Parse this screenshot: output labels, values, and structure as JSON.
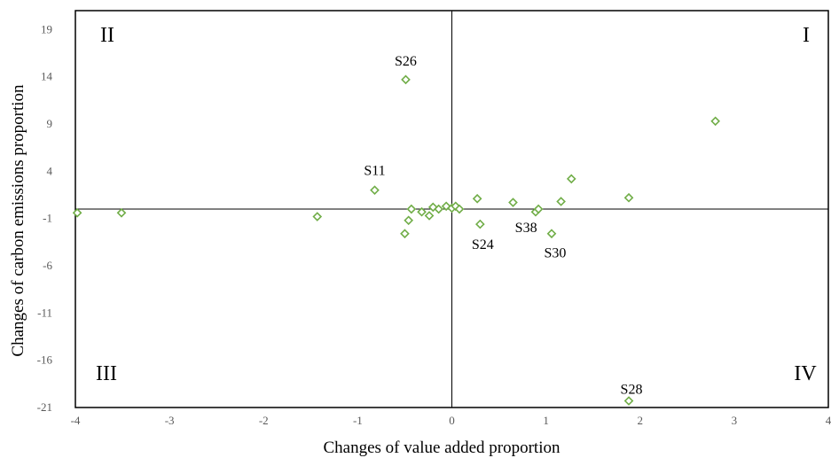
{
  "chart_data": {
    "type": "scatter",
    "title": "",
    "xlabel": "Changes of value added proportion",
    "ylabel": "Changes of carbon emissions proportion",
    "xlim": [
      -4,
      4
    ],
    "ylim": [
      -21,
      21
    ],
    "x_ticks": [
      "-4",
      "-3",
      "-2",
      "-1",
      "0",
      "1",
      "2",
      "3",
      "4"
    ],
    "y_ticks": [
      "19",
      "14",
      "9",
      "4",
      "-1",
      "-6",
      "-11",
      "-16",
      "-21"
    ],
    "quadrant_labels": {
      "I": "I",
      "II": "II",
      "III": "III",
      "IV": "IV"
    },
    "marker": "diamond-open",
    "marker_color": "#70ad47",
    "points": [
      {
        "x": -3.98,
        "y": -0.4
      },
      {
        "x": -3.51,
        "y": -0.4
      },
      {
        "x": -1.43,
        "y": -0.8
      },
      {
        "x": -0.82,
        "y": 2.0,
        "label": "S11"
      },
      {
        "x": -0.49,
        "y": 13.7,
        "label": "S26"
      },
      {
        "x": -0.5,
        "y": -2.6
      },
      {
        "x": -0.46,
        "y": -1.2
      },
      {
        "x": -0.43,
        "y": 0.0
      },
      {
        "x": -0.32,
        "y": -0.3
      },
      {
        "x": -0.24,
        "y": -0.7
      },
      {
        "x": -0.2,
        "y": 0.2
      },
      {
        "x": -0.14,
        "y": 0.0
      },
      {
        "x": -0.06,
        "y": 0.3
      },
      {
        "x": 0.0,
        "y": 0.1
      },
      {
        "x": 0.04,
        "y": 0.3
      },
      {
        "x": 0.08,
        "y": 0.0
      },
      {
        "x": 0.27,
        "y": 1.1
      },
      {
        "x": 0.3,
        "y": -1.6,
        "label": "S24"
      },
      {
        "x": 0.65,
        "y": 0.7
      },
      {
        "x": 0.89,
        "y": -0.3
      },
      {
        "x": 0.92,
        "y": 0.0,
        "label": "S38"
      },
      {
        "x": 1.06,
        "y": -2.6,
        "label": "S30"
      },
      {
        "x": 1.16,
        "y": 0.8
      },
      {
        "x": 1.27,
        "y": 3.2
      },
      {
        "x": 1.88,
        "y": 1.2
      },
      {
        "x": 2.8,
        "y": 9.3
      },
      {
        "x": 1.88,
        "y": -20.3,
        "label": "S28"
      }
    ]
  }
}
